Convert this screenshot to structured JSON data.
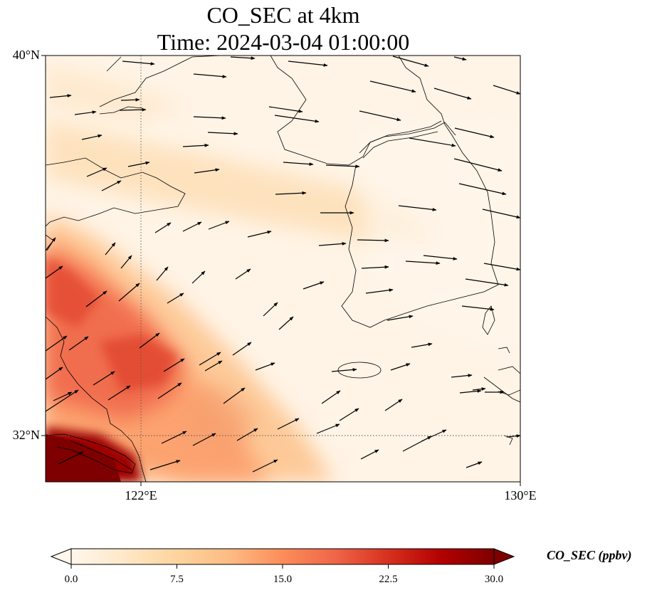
{
  "map": {
    "title_line1": "CO_SEC at 4km",
    "title_line2": "Time: 2024-03-04 01:00:00",
    "lat_labels": [
      "40°N",
      "32°N"
    ],
    "lon_labels": [
      "122°E",
      "130°E"
    ],
    "extent": {
      "lon_min": 120,
      "lon_max": 130,
      "lat_min": 31,
      "lat_max": 40
    },
    "gridlines": {
      "lons": [
        122
      ],
      "lats": [
        32
      ],
      "style": "dotted"
    },
    "vector_field": "wind arrows pointing generally east to east-northeast",
    "colormap": "OrRd"
  },
  "colorbar": {
    "label": "CO_SEC (ppbv)",
    "ticks": [
      "0.0",
      "7.5",
      "15.0",
      "22.5",
      "30.0"
    ],
    "min": 0,
    "max": 30,
    "extend": "both",
    "colors": [
      "#fff7ec",
      "#fee8c8",
      "#fdd49e",
      "#fdbb84",
      "#fc8d59",
      "#ef6548",
      "#d7301f",
      "#b30000",
      "#7f0000"
    ]
  }
}
